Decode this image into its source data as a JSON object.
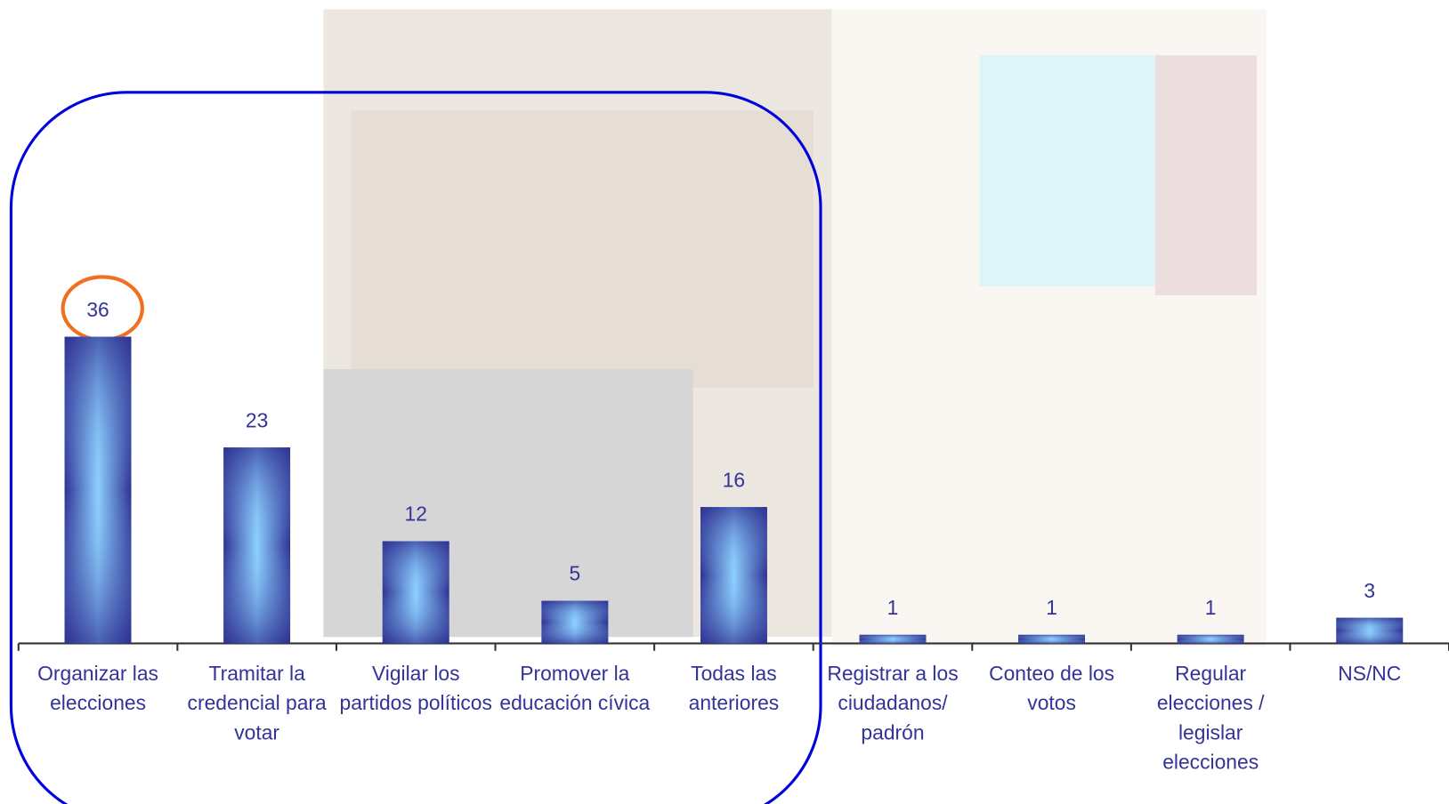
{
  "chart_data": {
    "type": "bar",
    "categories": [
      "Organizar las elecciones",
      "Tramitar la credencial para votar",
      "Vigilar los partidos políticos",
      "Promover la educación cívica",
      "Todas las anteriores",
      "Registrar a los ciudadanos/ padrón",
      "Conteo de los votos",
      "Regular elecciones / legislar elecciones",
      "NS/NC"
    ],
    "values": [
      36,
      23,
      12,
      5,
      16,
      1,
      1,
      1,
      3
    ],
    "color": "#2e3192",
    "ylim": [
      0,
      40
    ]
  }
}
